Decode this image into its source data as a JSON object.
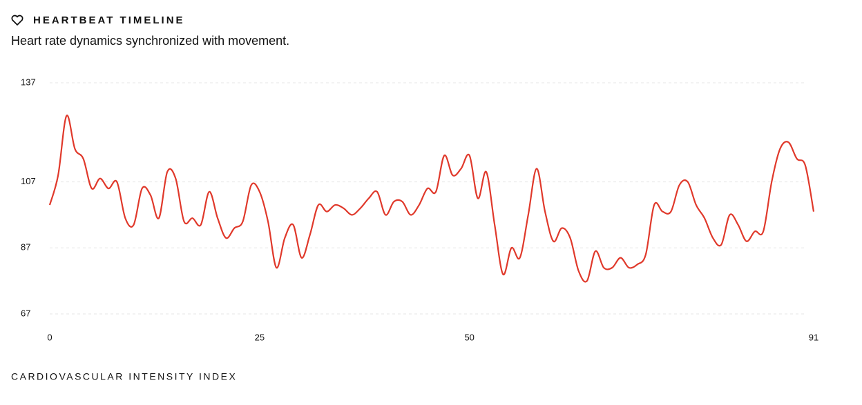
{
  "chart_data": {
    "type": "line",
    "title": "HEARTBEAT TIMELINE",
    "subtitle": "Heart rate dynamics synchronized with movement.",
    "x_label": "CARDIOVASCULAR INTENSITY INDEX",
    "x": [
      0,
      1,
      2,
      3,
      4,
      5,
      6,
      7,
      8,
      9,
      10,
      11,
      12,
      13,
      14,
      15,
      16,
      17,
      18,
      19,
      20,
      21,
      22,
      23,
      24,
      25,
      26,
      27,
      28,
      29,
      30,
      31,
      32,
      33,
      34,
      35,
      36,
      37,
      38,
      39,
      40,
      41,
      42,
      43,
      44,
      45,
      46,
      47,
      48,
      49,
      50,
      51,
      52,
      53,
      54,
      55,
      56,
      57,
      58,
      59,
      60,
      61,
      62,
      63,
      64,
      65,
      66,
      67,
      68,
      69,
      70,
      71,
      72,
      73,
      74,
      75,
      76,
      77,
      78,
      79,
      80,
      81,
      82,
      83,
      84,
      85,
      86,
      87,
      88,
      89,
      90,
      91
    ],
    "series": [
      {
        "name": "Heart rate",
        "color": "#e0392b",
        "values": [
          100,
          109,
          127,
          117,
          114,
          105,
          108,
          105,
          107,
          96,
          94,
          105,
          103,
          96,
          110,
          108,
          95,
          96,
          94,
          104,
          96,
          90,
          93,
          95,
          106,
          104,
          95,
          81,
          90,
          94,
          84,
          91,
          100,
          98,
          100,
          99,
          97,
          99,
          102,
          104,
          97,
          101,
          101,
          97,
          100,
          105,
          104,
          115,
          109,
          111,
          115,
          102,
          110,
          94,
          79,
          87,
          84,
          97,
          111,
          98,
          89,
          93,
          90,
          80,
          77,
          86,
          81,
          81,
          84,
          81,
          82,
          85,
          100,
          98,
          98,
          106,
          107,
          100,
          96,
          90,
          88,
          97,
          94,
          89,
          92,
          92,
          107,
          117,
          119,
          114,
          112,
          98
        ]
      }
    ],
    "xlim": [
      0,
      91
    ],
    "xticks": [
      0,
      25,
      50,
      91
    ],
    "ylim": [
      67,
      137
    ],
    "yticks": [
      67,
      87,
      107,
      137
    ],
    "grid": true
  }
}
